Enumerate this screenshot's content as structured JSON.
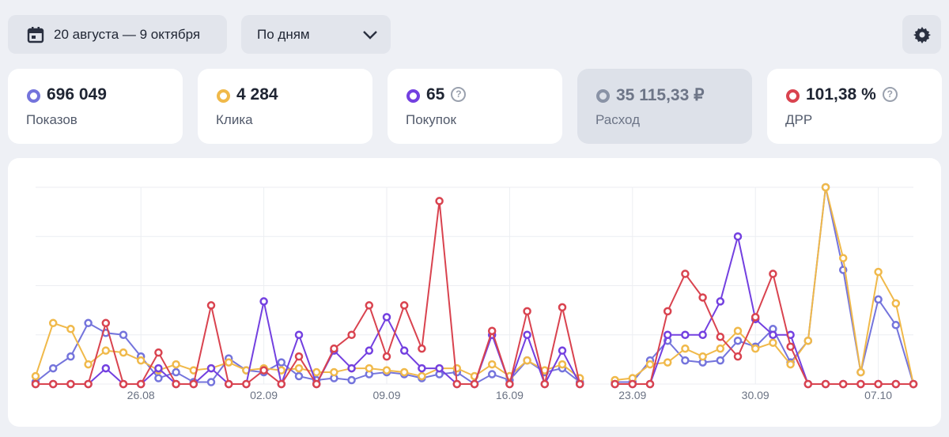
{
  "toolbar": {
    "date_range": "20 августа — 9 октября",
    "grouping": "По дням"
  },
  "metrics": [
    {
      "value": "696 049",
      "label": "Показов",
      "color": "#7474dc"
    },
    {
      "value": "4 284",
      "label": "Клика",
      "color": "#f0b94a"
    },
    {
      "value": "65",
      "label": "Покупок",
      "color": "#7340e0"
    },
    {
      "value": "35 115,33 ₽",
      "label": "Расход",
      "color": "#8a93a6"
    },
    {
      "value": "101,38 %",
      "label": "ДРР",
      "color": "#d9434f"
    }
  ],
  "chart_data": {
    "type": "line",
    "categories": [
      null,
      null,
      null,
      null,
      null,
      null,
      "26.08",
      null,
      null,
      null,
      null,
      null,
      null,
      "02.09",
      null,
      null,
      null,
      null,
      null,
      null,
      "09.09",
      null,
      null,
      null,
      null,
      null,
      null,
      "16.09",
      null,
      null,
      null,
      null,
      null,
      null,
      "23.09",
      null,
      null,
      null,
      null,
      null,
      null,
      "30.09",
      null,
      null,
      null,
      null,
      null,
      null,
      "07.10",
      null,
      null
    ],
    "ylim": [
      0,
      100
    ],
    "yticks": [
      0,
      25,
      50,
      75,
      100
    ],
    "grid": true,
    "series": [
      {
        "color": "#7474dc",
        "values": [
          1,
          8,
          14,
          31,
          26,
          25,
          14,
          3,
          6,
          1,
          1,
          13,
          7,
          6,
          11,
          4,
          2,
          3,
          2,
          5,
          6,
          5,
          3,
          5,
          6,
          0,
          5,
          2,
          12,
          6,
          8,
          1,
          null,
          1,
          1,
          12,
          22,
          12,
          11,
          12,
          22,
          19,
          28,
          11,
          22,
          100,
          58,
          6,
          43,
          30,
          0
        ]
      },
      {
        "color": "#f0b94a",
        "values": [
          4,
          31,
          28,
          10,
          17,
          16,
          12,
          7,
          10,
          7,
          8,
          11,
          7,
          8,
          7,
          8,
          6,
          6,
          8,
          8,
          7,
          6,
          4,
          8,
          8,
          4,
          10,
          4,
          12,
          7,
          10,
          3,
          null,
          2,
          3,
          10,
          11,
          18,
          14,
          18,
          27,
          18,
          21,
          10,
          22,
          100,
          64,
          6,
          57,
          41,
          0
        ]
      },
      {
        "color": "#7340e0",
        "values": [
          0,
          0,
          0,
          0,
          8,
          0,
          0,
          8,
          0,
          0,
          8,
          0,
          0,
          42,
          0,
          25,
          0,
          17,
          8,
          17,
          34,
          17,
          8,
          8,
          0,
          0,
          25,
          0,
          25,
          0,
          17,
          0,
          null,
          0,
          0,
          0,
          25,
          25,
          25,
          42,
          75,
          33,
          25,
          25,
          0,
          0,
          0,
          0,
          0,
          0,
          0
        ]
      },
      {
        "color": "#d9434f",
        "values": [
          0,
          0,
          0,
          0,
          31,
          0,
          0,
          16,
          0,
          0,
          40,
          0,
          0,
          7,
          0,
          14,
          0,
          18,
          25,
          40,
          14,
          40,
          18,
          93,
          0,
          0,
          27,
          0,
          37,
          0,
          39,
          0,
          null,
          0,
          0,
          0,
          37,
          56,
          44,
          24,
          14,
          34,
          56,
          19,
          0,
          0,
          0,
          0,
          0,
          0,
          0
        ]
      }
    ]
  }
}
